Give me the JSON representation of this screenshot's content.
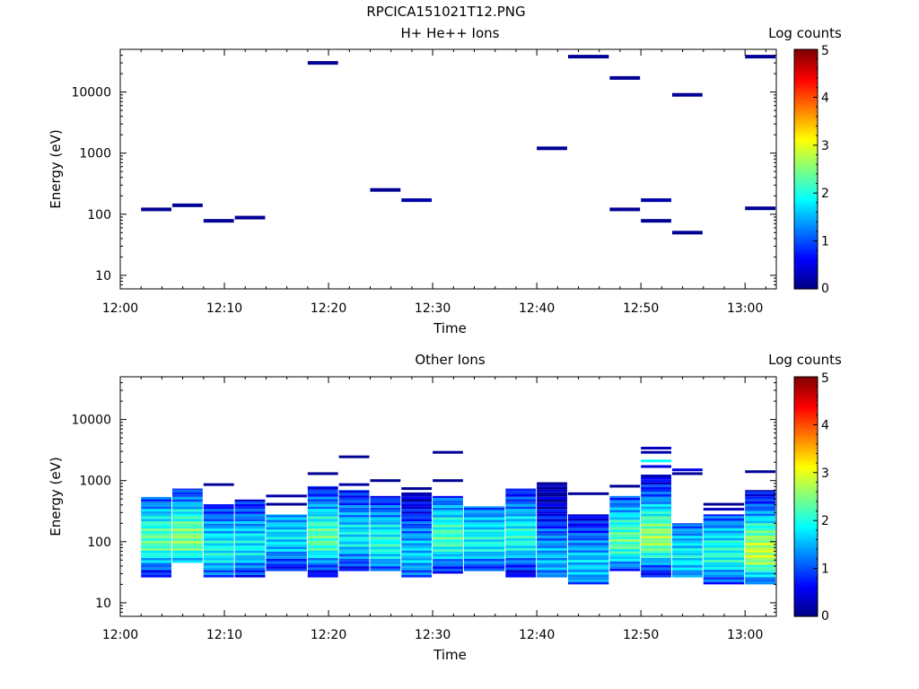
{
  "figure": {
    "title": "RPCICA151021T12.PNG"
  },
  "chart_data": [
    {
      "type": "heatmap",
      "title": "H+ He++ Ions",
      "xlabel": "Time",
      "ylabel": "Energy (eV)",
      "x_scale": "time",
      "y_scale": "log",
      "xlim": [
        "12:00",
        "13:03"
      ],
      "ylim": [
        6,
        50000
      ],
      "xticks": [
        "12:00",
        "12:10",
        "12:20",
        "12:30",
        "12:40",
        "12:50",
        "13:00"
      ],
      "yticks": [
        {
          "value": 10,
          "label": "10"
        },
        {
          "value": 100,
          "label": "100"
        },
        {
          "value": 1000,
          "label": "1000"
        },
        {
          "value": 10000,
          "label": "10000"
        }
      ],
      "colorbar": {
        "label": "Log counts",
        "range": [
          0,
          5
        ],
        "ticks": [
          "0",
          "1",
          "2",
          "3",
          "4",
          "5"
        ],
        "colormap": "jet"
      },
      "grid": false,
      "legend": "none",
      "cells": [
        {
          "t0": "12:02",
          "t1": "12:05",
          "e": 120,
          "log_counts": 0.1
        },
        {
          "t0": "12:05",
          "t1": "12:08",
          "e": 140,
          "log_counts": 0.1
        },
        {
          "t0": "12:08",
          "t1": "12:11",
          "e": 78,
          "log_counts": 0.1
        },
        {
          "t0": "12:11",
          "t1": "12:14",
          "e": 88,
          "log_counts": 0.1
        },
        {
          "t0": "12:18",
          "t1": "12:21",
          "e": 30000,
          "log_counts": 0.1
        },
        {
          "t0": "12:24",
          "t1": "12:27",
          "e": 250,
          "log_counts": 0.1
        },
        {
          "t0": "12:27",
          "t1": "12:30",
          "e": 170,
          "log_counts": 0.2
        },
        {
          "t0": "12:40",
          "t1": "12:43",
          "e": 1200,
          "log_counts": 0.1
        },
        {
          "t0": "12:43",
          "t1": "12:47",
          "e": 38000,
          "log_counts": 0.1
        },
        {
          "t0": "12:47",
          "t1": "12:50",
          "e": 17000,
          "log_counts": 0.1
        },
        {
          "t0": "12:47",
          "t1": "12:50",
          "e": 120,
          "log_counts": 0.1
        },
        {
          "t0": "12:50",
          "t1": "12:53",
          "e": 170,
          "log_counts": 0.2
        },
        {
          "t0": "12:50",
          "t1": "12:53",
          "e": 78,
          "log_counts": 0.1
        },
        {
          "t0": "12:53",
          "t1": "12:56",
          "e": 9000,
          "log_counts": 0.1
        },
        {
          "t0": "12:53",
          "t1": "12:56",
          "e": 50,
          "log_counts": 0.1
        },
        {
          "t0": "13:00",
          "t1": "13:03",
          "e": 38000,
          "log_counts": 0.1
        },
        {
          "t0": "13:00",
          "t1": "13:03",
          "e": 125,
          "log_counts": 0.1
        }
      ]
    },
    {
      "type": "heatmap",
      "title": "Other Ions",
      "xlabel": "Time",
      "ylabel": "Energy (eV)",
      "x_scale": "time",
      "y_scale": "log",
      "xlim": [
        "12:00",
        "13:03"
      ],
      "ylim": [
        6,
        50000
      ],
      "xticks": [
        "12:00",
        "12:10",
        "12:20",
        "12:30",
        "12:40",
        "12:50",
        "13:00"
      ],
      "yticks": [
        {
          "value": 10,
          "label": "10"
        },
        {
          "value": 100,
          "label": "100"
        },
        {
          "value": 1000,
          "label": "1000"
        },
        {
          "value": 10000,
          "label": "10000"
        }
      ],
      "colorbar": {
        "label": "Log counts",
        "range": [
          0,
          5
        ],
        "ticks": [
          "0",
          "1",
          "2",
          "3",
          "4",
          "5"
        ],
        "colormap": "jet"
      },
      "grid": false,
      "legend": "none",
      "columns": [
        {
          "t0": "12:02",
          "t1": "12:05",
          "emin": 26,
          "emax": 540,
          "peak_e": 100,
          "peak": 2.3,
          "lines": []
        },
        {
          "t0": "12:05",
          "t1": "12:08",
          "emin": 45,
          "emax": 740,
          "peak_e": 110,
          "peak": 2.5,
          "lines": []
        },
        {
          "t0": "12:08",
          "t1": "12:11",
          "emin": 26,
          "emax": 410,
          "peak_e": 70,
          "peak": 1.9,
          "lines": [
            {
              "e": 860,
              "v": 0.1
            }
          ]
        },
        {
          "t0": "12:11",
          "t1": "12:14",
          "emin": 26,
          "emax": 490,
          "peak_e": 80,
          "peak": 1.8,
          "lines": []
        },
        {
          "t0": "12:14",
          "t1": "12:18",
          "emin": 33,
          "emax": 280,
          "peak_e": 110,
          "peak": 1.7,
          "lines": [
            {
              "e": 560,
              "v": 0.2
            },
            {
              "e": 410,
              "v": 0.1
            }
          ]
        },
        {
          "t0": "12:18",
          "t1": "12:21",
          "emin": 26,
          "emax": 810,
          "peak_e": 110,
          "peak": 2.3,
          "lines": [
            {
              "e": 1300,
              "v": 0.1
            }
          ]
        },
        {
          "t0": "12:21",
          "t1": "12:24",
          "emin": 33,
          "emax": 700,
          "peak_e": 110,
          "peak": 1.8,
          "lines": [
            {
              "e": 2450,
              "v": 0.1
            },
            {
              "e": 860,
              "v": 0.2
            }
          ]
        },
        {
          "t0": "12:24",
          "t1": "12:27",
          "emin": 33,
          "emax": 560,
          "peak_e": 90,
          "peak": 2.0,
          "lines": [
            {
              "e": 1000,
              "v": 0.1
            }
          ]
        },
        {
          "t0": "12:27",
          "t1": "12:30",
          "emin": 26,
          "emax": 640,
          "peak_e": 60,
          "peak": 1.6,
          "lines": [
            {
              "e": 740,
              "v": 0.1
            }
          ]
        },
        {
          "t0": "12:30",
          "t1": "12:33",
          "emin": 30,
          "emax": 560,
          "peak_e": 110,
          "peak": 2.2,
          "lines": [
            {
              "e": 2900,
              "v": 0.1
            },
            {
              "e": 1000,
              "v": 0.1
            }
          ]
        },
        {
          "t0": "12:33",
          "t1": "12:37",
          "emin": 33,
          "emax": 380,
          "peak_e": 100,
          "peak": 1.9,
          "lines": []
        },
        {
          "t0": "12:37",
          "t1": "12:40",
          "emin": 26,
          "emax": 740,
          "peak_e": 110,
          "peak": 2.0,
          "lines": []
        },
        {
          "t0": "12:40",
          "t1": "12:43",
          "emin": 26,
          "emax": 940,
          "peak_e": 50,
          "peak": 1.5,
          "lines": []
        },
        {
          "t0": "12:43",
          "t1": "12:47",
          "emin": 20,
          "emax": 280,
          "peak_e": 40,
          "peak": 1.6,
          "lines": [
            {
              "e": 610,
              "v": 0.1
            }
          ]
        },
        {
          "t0": "12:47",
          "t1": "12:50",
          "emin": 33,
          "emax": 560,
          "peak_e": 100,
          "peak": 2.3,
          "lines": [
            {
              "e": 810,
              "v": 0.1
            }
          ]
        },
        {
          "t0": "12:50",
          "t1": "12:53",
          "emin": 26,
          "emax": 1250,
          "peak_e": 110,
          "peak": 2.6,
          "lines": [
            {
              "e": 3400,
              "v": 0.3
            },
            {
              "e": 2900,
              "v": 0.2
            },
            {
              "e": 2100,
              "v": 1.9
            },
            {
              "e": 1700,
              "v": 0.5
            }
          ]
        },
        {
          "t0": "12:53",
          "t1": "12:56",
          "emin": 26,
          "emax": 200,
          "peak_e": 55,
          "peak": 1.8,
          "lines": [
            {
              "e": 1500,
              "v": 0.5
            },
            {
              "e": 1300,
              "v": 0.1
            }
          ]
        },
        {
          "t0": "12:56",
          "t1": "13:00",
          "emin": 20,
          "emax": 280,
          "peak_e": 60,
          "peak": 2.0,
          "lines": [
            {
              "e": 410,
              "v": 0.1
            },
            {
              "e": 340,
              "v": 0.3
            }
          ]
        },
        {
          "t0": "13:00",
          "t1": "13:03",
          "emin": 20,
          "emax": 700,
          "peak_e": 65,
          "peak": 2.8,
          "lines": [
            {
              "e": 1400,
              "v": 0.1
            }
          ]
        }
      ]
    }
  ]
}
